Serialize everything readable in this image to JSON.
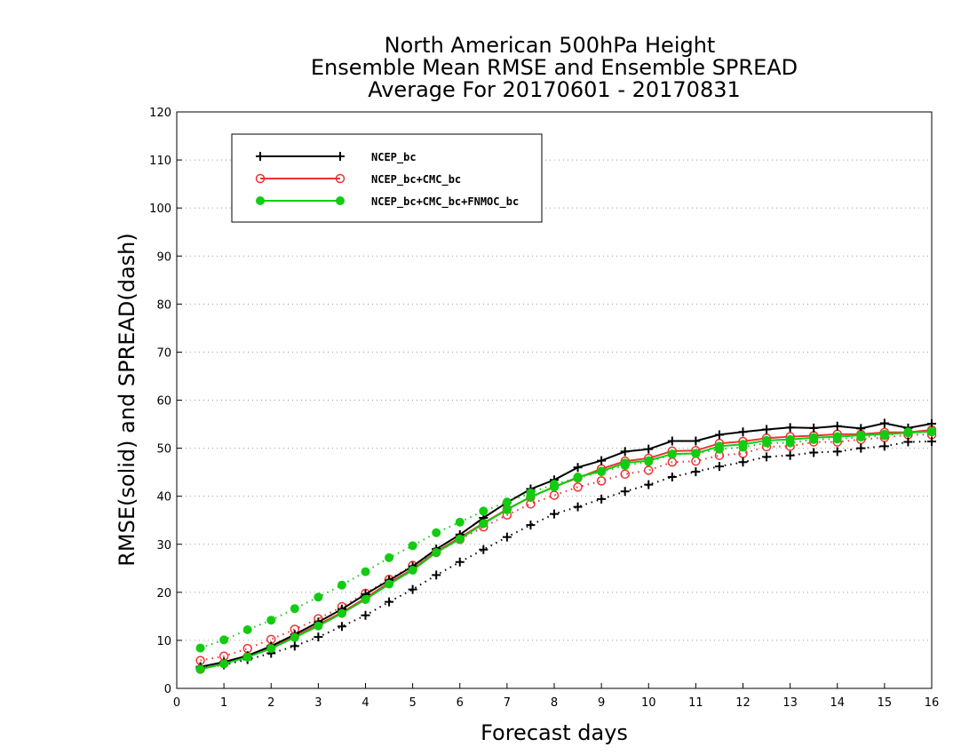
{
  "chart_data": {
    "type": "line",
    "title": [
      "North American 500hPa Height",
      "Ensemble Mean RMSE and Ensemble SPREAD",
      "Average For 20170601 - 20170831"
    ],
    "xlabel": "Forecast days",
    "ylabel": "RMSE(solid) and SPREAD(dash)",
    "xlim": [
      0,
      16
    ],
    "ylim": [
      0,
      120
    ],
    "xticks": [
      "0",
      "1",
      "2",
      "3",
      "4",
      "5",
      "6",
      "7",
      "8",
      "9",
      "10",
      "11",
      "12",
      "13",
      "14",
      "15",
      "16"
    ],
    "yticks": [
      "0",
      "10",
      "20",
      "30",
      "40",
      "50",
      "60",
      "70",
      "80",
      "90",
      "100",
      "110",
      "120"
    ],
    "grid": true,
    "legend_position": "top-left",
    "x": [
      0.5,
      1,
      1.5,
      2,
      2.5,
      3,
      3.5,
      4,
      4.5,
      5,
      5.5,
      6,
      6.5,
      7,
      7.5,
      8,
      8.5,
      9,
      9.5,
      10,
      10.5,
      11,
      11.5,
      12,
      12.5,
      13,
      13.5,
      14,
      14.5,
      15,
      15.5,
      16
    ],
    "series": [
      {
        "name": "NCEP_bc",
        "color": "#000000",
        "marker": "plus",
        "rmse": [
          4.5,
          5.5,
          6.8,
          8.8,
          11.2,
          13.8,
          16.5,
          19.6,
          22.5,
          25.4,
          29,
          32,
          35.5,
          38.7,
          41.5,
          43.4,
          46,
          47.4,
          49.3,
          49.8,
          51.5,
          51.5,
          52.8,
          53.4,
          53.9,
          54.3,
          54.2,
          54.6,
          54.1,
          55.2,
          54.2,
          55.1
        ],
        "spread": [
          4.3,
          4.9,
          6,
          7.3,
          8.8,
          10.7,
          12.9,
          15.2,
          18,
          20.6,
          23.6,
          26.3,
          28.9,
          31.5,
          34,
          36.3,
          37.8,
          39.4,
          41,
          42.4,
          44,
          45.1,
          46.2,
          47.1,
          48.2,
          48.5,
          49.1,
          49.3,
          50,
          50.4,
          51.3,
          51.4
        ]
      },
      {
        "name": "NCEP_bc+CMC_bc",
        "color": "#ee3333",
        "marker": "open-circle",
        "rmse": [
          4,
          5.2,
          6.6,
          8.5,
          10.8,
          13.3,
          15.8,
          18.8,
          22,
          24.8,
          28.5,
          31.4,
          34.4,
          37.3,
          39.8,
          42,
          43.8,
          45.7,
          47.3,
          47.9,
          49.4,
          49.5,
          51,
          51.4,
          52.1,
          52.4,
          52.6,
          52.9,
          52.9,
          53.3,
          53.3,
          53.8
        ],
        "spread": [
          5.8,
          6.7,
          8.3,
          10.2,
          12.3,
          14.5,
          17,
          19.8,
          22.7,
          25.6,
          28.3,
          31,
          33.6,
          36.1,
          38.4,
          40.2,
          41.9,
          43.2,
          44.6,
          45.4,
          47.1,
          47.3,
          48.5,
          48.9,
          50.3,
          50.4,
          51.3,
          51.3,
          51.8,
          52.2,
          52.8,
          52.8
        ]
      },
      {
        "name": "NCEP_bc+CMC_bc+FNMOC_bc",
        "color": "#11cc11",
        "marker": "filled-circle",
        "rmse": [
          4,
          5.1,
          6.5,
          8.3,
          10.6,
          13,
          15.6,
          18.5,
          21.7,
          24.6,
          28.3,
          31.1,
          34.3,
          37.2,
          39.9,
          41.9,
          44,
          45.2,
          46.9,
          47.4,
          48.8,
          48.9,
          50.4,
          50.8,
          51.6,
          51.8,
          52.2,
          52.4,
          52.7,
          52.9,
          53.2,
          53.5
        ],
        "spread": [
          8.4,
          10.1,
          12.2,
          14.2,
          16.6,
          19,
          21.5,
          24.3,
          27.2,
          29.7,
          32.4,
          34.6,
          36.9,
          38.8,
          40.7,
          42.5,
          43.8,
          45.1,
          46.4,
          47.2,
          48.7,
          48.9,
          49.8,
          50.2,
          51.1,
          51.1,
          51.8,
          51.9,
          52.3,
          52.6,
          53.4,
          53.4
        ]
      }
    ]
  }
}
